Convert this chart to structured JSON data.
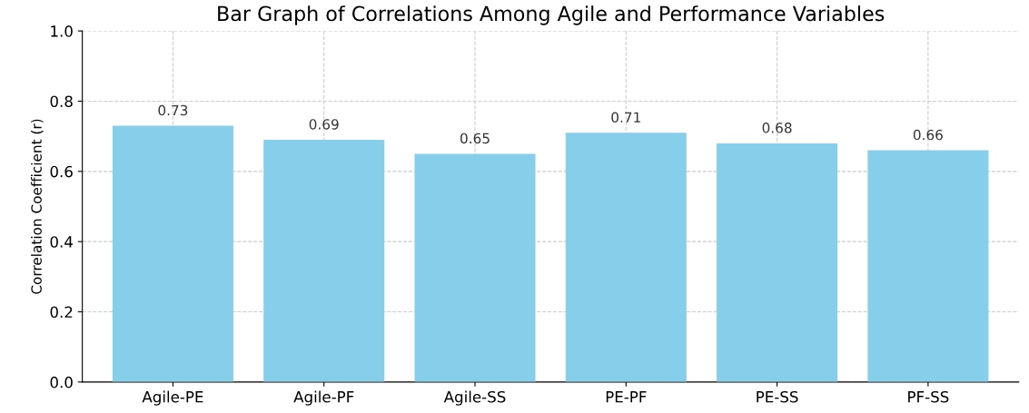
{
  "chart_data": {
    "type": "bar",
    "title": "Bar Graph of Correlations Among Agile and Performance Variables",
    "ylabel": "Correlation Coefficient (r)",
    "categories": [
      "Agile-PE",
      "Agile-PF",
      "Agile-SS",
      "PE-PF",
      "PE-SS",
      "PF-SS"
    ],
    "values": [
      0.73,
      0.69,
      0.65,
      0.71,
      0.68,
      0.66
    ],
    "color": "#87ceeb",
    "ylim": [
      0,
      1
    ],
    "yticks": [
      {
        "value": 0,
        "label": "0.0"
      },
      {
        "value": 0.2,
        "label": "0.2"
      },
      {
        "value": 0.4,
        "label": "0.4"
      },
      {
        "value": 0.6,
        "label": "0.6"
      },
      {
        "value": 0.8,
        "label": "0.8"
      },
      {
        "value": 1,
        "label": "1.0"
      }
    ],
    "grid": true,
    "data_labels": true
  }
}
